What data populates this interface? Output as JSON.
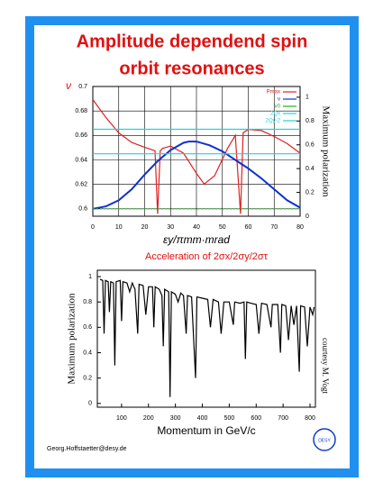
{
  "header": {
    "title_line1": "Amplitude dependend spin",
    "title_line2": "orbit resonances"
  },
  "chart_data": [
    {
      "type": "line",
      "xlabel": "εy/πmm·mrad",
      "ylabel": "ν",
      "y2label": "Maximum polarization",
      "xlim": [
        0,
        80
      ],
      "xticks": [
        0,
        10,
        20,
        30,
        40,
        50,
        60,
        70,
        80
      ],
      "ylim": [
        0.594,
        0.7
      ],
      "yticks": [
        0.6,
        0.62,
        0.64,
        0.66,
        0.68,
        0.7
      ],
      "y2lim": [
        0,
        1.09
      ],
      "y2ticks": [
        0,
        0.2,
        0.4,
        0.6,
        0.8,
        1
      ],
      "grid": true,
      "series": [
        {
          "name": "Pmax",
          "color": "#e02020",
          "axis": "y2",
          "x": [
            0,
            5,
            10,
            15,
            20,
            24,
            25,
            26,
            27,
            30,
            35,
            40,
            43,
            47,
            52,
            55,
            57,
            58,
            60,
            65,
            70,
            75,
            80
          ],
          "values": [
            0.98,
            0.83,
            0.7,
            0.62,
            0.58,
            0.55,
            0.02,
            0.55,
            0.57,
            0.59,
            0.53,
            0.36,
            0.27,
            0.34,
            0.57,
            0.68,
            0.02,
            0.7,
            0.73,
            0.72,
            0.67,
            0.61,
            0.53
          ]
        },
        {
          "name": "ν",
          "color": "#1030d0",
          "x": [
            0,
            5,
            10,
            15,
            20,
            25,
            30,
            35,
            37,
            40,
            45,
            50,
            55,
            60,
            65,
            70,
            75,
            80
          ],
          "values": [
            0.6,
            0.602,
            0.607,
            0.616,
            0.628,
            0.639,
            0.648,
            0.654,
            0.655,
            0.655,
            0.652,
            0.647,
            0.64,
            0.633,
            0.625,
            0.616,
            0.607,
            0.601
          ]
        },
        {
          "name": "ν0",
          "color": "#20b020",
          "x": [
            0,
            80
          ],
          "values": [
            0.6,
            0.6
          ]
        },
        {
          "name": "2Qx",
          "color": "#20d0e0",
          "x": [
            0,
            80
          ],
          "values": [
            0.665,
            0.665
          ]
        },
        {
          "name": "2Qy-2",
          "color": "#20d0e0",
          "x": [
            0,
            80
          ],
          "values": [
            0.645,
            0.645
          ]
        }
      ]
    },
    {
      "type": "line",
      "title": "Acceleration of 2σx/2σy/2στ",
      "xlabel": "Momentum in GeV/c",
      "ylabel": "Maximum polarization",
      "annotation": "courtesy M. Vogt",
      "xlim": [
        10,
        820
      ],
      "xticks": [
        100,
        200,
        300,
        400,
        500,
        600,
        700,
        800
      ],
      "ylim": [
        -0.03,
        1.05
      ],
      "yticks": [
        0,
        0.2,
        0.4,
        0.6,
        0.8,
        1
      ],
      "grid": false,
      "series": [
        {
          "name": "P",
          "color": "#000000",
          "x": [
            20,
            30,
            35,
            40,
            50,
            55,
            60,
            70,
            75,
            80,
            95,
            100,
            105,
            120,
            130,
            140,
            150,
            160,
            165,
            180,
            190,
            200,
            215,
            220,
            225,
            240,
            250,
            255,
            260,
            275,
            280,
            285,
            300,
            310,
            320,
            330,
            340,
            345,
            360,
            375,
            380,
            400,
            420,
            430,
            440,
            460,
            470,
            480,
            500,
            515,
            520,
            540,
            555,
            560,
            565,
            580,
            600,
            610,
            620,
            640,
            655,
            660,
            680,
            690,
            695,
            710,
            720,
            730,
            740,
            750,
            760,
            765,
            780,
            790,
            800,
            810,
            815
          ],
          "values": [
            0.98,
            0.97,
            0.55,
            0.97,
            0.96,
            0.72,
            0.96,
            0.95,
            0.3,
            0.96,
            0.97,
            0.65,
            0.96,
            0.95,
            0.88,
            0.95,
            0.9,
            0.55,
            0.94,
            0.93,
            0.7,
            0.92,
            0.92,
            0.6,
            0.92,
            0.9,
            0.85,
            0.45,
            0.9,
            0.88,
            0.05,
            0.88,
            0.86,
            0.8,
            0.87,
            0.85,
            0.55,
            0.85,
            0.84,
            0.2,
            0.84,
            0.83,
            0.82,
            0.6,
            0.82,
            0.8,
            0.55,
            0.8,
            0.8,
            0.62,
            0.8,
            0.79,
            0.8,
            0.35,
            0.8,
            0.79,
            0.78,
            0.55,
            0.79,
            0.78,
            0.6,
            0.78,
            0.78,
            0.4,
            0.78,
            0.77,
            0.5,
            0.77,
            0.62,
            0.77,
            0.25,
            0.77,
            0.76,
            0.45,
            0.76,
            0.7,
            0.76
          ]
        }
      ]
    }
  ],
  "footer": {
    "email": "Georg.Hoffstaetter@desy.de",
    "logo": "DESY"
  }
}
